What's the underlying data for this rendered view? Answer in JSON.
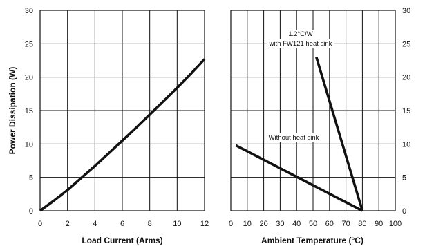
{
  "chart_data": [
    {
      "type": "line",
      "title": "",
      "xlabel": "Load Current (Arms)",
      "ylabel": "Power Dissipation (W)",
      "xlim": [
        0,
        12
      ],
      "ylim": [
        0,
        30
      ],
      "x_ticks": [
        0,
        2,
        4,
        6,
        8,
        10,
        12
      ],
      "y_ticks": [
        0,
        5,
        10,
        15,
        20,
        25,
        30
      ],
      "grid": true,
      "series": [
        {
          "x": [
            0,
            1,
            2,
            3,
            4,
            5,
            6,
            7,
            8,
            9,
            10,
            11,
            12
          ],
          "y": [
            0,
            1.5,
            3.1,
            4.9,
            6.7,
            8.6,
            10.5,
            12.4,
            14.4,
            16.4,
            18.4,
            20.5,
            22.7
          ]
        }
      ]
    },
    {
      "type": "line",
      "title": "",
      "xlabel": "Ambient Temperature (°C)",
      "ylabel": "",
      "xlim": [
        0,
        100
      ],
      "ylim": [
        0,
        30
      ],
      "x_ticks": [
        0,
        10,
        20,
        30,
        40,
        50,
        60,
        70,
        80,
        90,
        100
      ],
      "y_ticks": [
        0,
        5,
        10,
        15,
        20,
        25,
        30
      ],
      "y_axis_side": "right",
      "grid": true,
      "series": [
        {
          "name": "1.2°C/W with FW121 heat sink",
          "x": [
            52,
            80
          ],
          "y": [
            23,
            0
          ]
        },
        {
          "name": "Without heat sink",
          "x": [
            3,
            80
          ],
          "y": [
            9.8,
            0
          ]
        }
      ],
      "annotations": [
        {
          "lines": [
            "1.2°C/W",
            "with FW121 heat sink"
          ]
        },
        {
          "lines": [
            "Without heat sink"
          ]
        }
      ]
    }
  ]
}
